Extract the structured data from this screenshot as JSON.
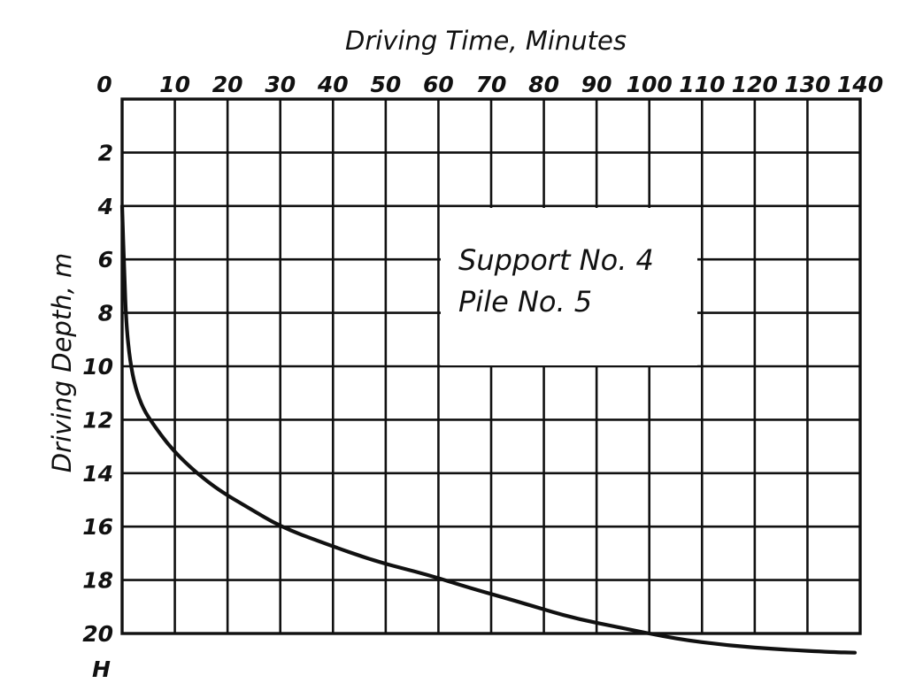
{
  "chart_data": {
    "type": "line",
    "title": "",
    "xlabel": "Driving Time, Minutes",
    "ylabel": "Driving Depth, m",
    "y_unit_label": "H",
    "x_axis_position": "top",
    "y_axis_inverted": true,
    "xlim": [
      0,
      140
    ],
    "ylim": [
      0,
      20
    ],
    "grid": true,
    "x_ticks": [
      "0",
      "10",
      "20",
      "30",
      "40",
      "50",
      "60",
      "70",
      "80",
      "90",
      "100",
      "110",
      "120",
      "130",
      "140"
    ],
    "y_ticks": [
      "2",
      "4",
      "6",
      "8",
      "10",
      "12",
      "14",
      "16",
      "18",
      "20"
    ],
    "annotation": [
      "Support No. 4",
      "Pile No. 5"
    ],
    "series": [
      {
        "x": [
          0,
          0.4,
          0.8,
          1.5,
          2.5,
          4,
          6,
          9,
          13,
          18,
          24,
          30,
          38,
          48,
          58,
          66,
          75,
          85,
          95,
          105,
          115,
          125,
          135,
          139
        ],
        "y": [
          4,
          6.5,
          8.5,
          9.8,
          10.8,
          11.6,
          12.2,
          13,
          13.8,
          14.6,
          15.3,
          16,
          16.6,
          17.3,
          17.8,
          18.3,
          18.8,
          19.4,
          19.8,
          20.2,
          20.45,
          20.6,
          20.7,
          20.72
        ]
      }
    ]
  }
}
